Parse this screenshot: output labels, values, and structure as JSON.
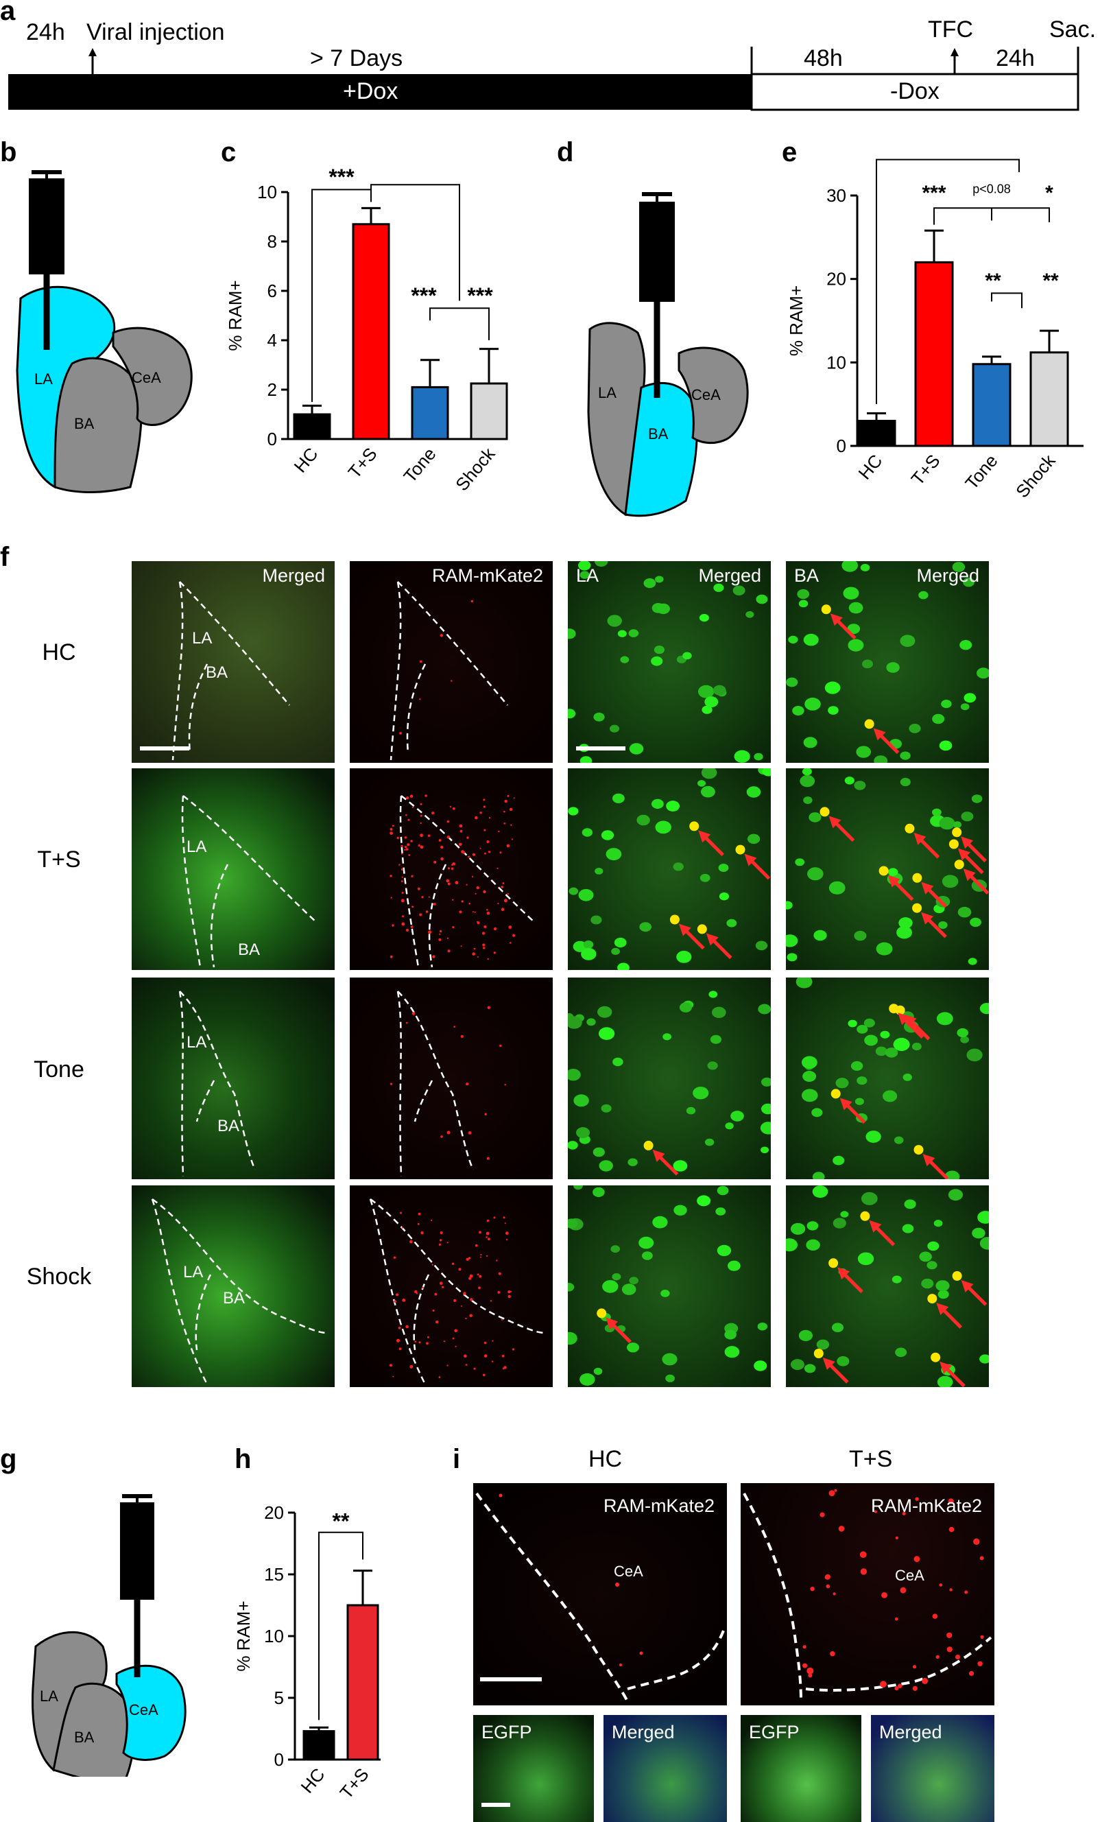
{
  "panels": {
    "a": "a",
    "b": "b",
    "c": "c",
    "d": "d",
    "e": "e",
    "f": "f",
    "g": "g",
    "h": "h",
    "i": "i"
  },
  "timeline": {
    "t24h_left": "24h",
    "viral_injection": "Viral injection",
    "days": "> 7 Days",
    "plus_dox": "+Dox",
    "h48": "48h",
    "tfc": "TFC",
    "t24h_right": "24h",
    "sac": "Sac.",
    "minus_dox": "-Dox"
  },
  "regions": {
    "la": "LA",
    "ba": "BA",
    "cea": "CeA"
  },
  "colors": {
    "highlight": "#00e5ff",
    "grey": "#8c8c8c",
    "hc": "#000000",
    "ts_red": "#ff0000",
    "ts_red_h": "#e8282e",
    "tone": "#1f6fbf",
    "shock": "#d8d8d8",
    "arrow": "#ff2a2a"
  },
  "chart_data": [
    {
      "id": "c",
      "type": "bar",
      "ylabel": "% RAM+",
      "ylim": [
        0,
        10
      ],
      "yticks": [
        "0",
        "2",
        "4",
        "6",
        "8",
        "10"
      ],
      "categories": [
        "HC",
        "T+S",
        "Tone",
        "Shock"
      ],
      "values": [
        1.0,
        8.7,
        2.1,
        2.25
      ],
      "errors": [
        0.35,
        0.65,
        1.1,
        1.4
      ],
      "sig": [
        "***",
        "***",
        "***"
      ]
    },
    {
      "id": "e",
      "type": "bar",
      "ylabel": "% RAM+",
      "ylim": [
        0,
        30
      ],
      "yticks": [
        "0",
        "10",
        "20",
        "30"
      ],
      "categories": [
        "HC",
        "T+S",
        "Tone",
        "Shock"
      ],
      "values": [
        3.0,
        22.0,
        9.8,
        11.2
      ],
      "errors": [
        0.9,
        3.8,
        0.9,
        2.6
      ],
      "sig": [
        "***",
        "p<0.08",
        "*",
        "**",
        "**"
      ]
    },
    {
      "id": "h",
      "type": "bar",
      "ylabel": "% RAM+",
      "ylim": [
        0,
        20
      ],
      "yticks": [
        "0",
        "5",
        "10",
        "15",
        "20"
      ],
      "categories": [
        "HC",
        "T+S"
      ],
      "values": [
        2.3,
        12.5
      ],
      "errors": [
        0.3,
        2.8
      ],
      "sig": [
        "**"
      ]
    }
  ],
  "panel_f": {
    "rows": [
      "HC",
      "T+S",
      "Tone",
      "Shock"
    ],
    "col_labels": {
      "merged": "Merged",
      "ram": "RAM-mKate2",
      "la": "LA",
      "ba": "BA"
    }
  },
  "panel_i": {
    "hc": "HC",
    "ts": "T+S",
    "ram": "RAM-mKate2",
    "cea": "CeA",
    "egfp": "EGFP",
    "merged": "Merged"
  }
}
